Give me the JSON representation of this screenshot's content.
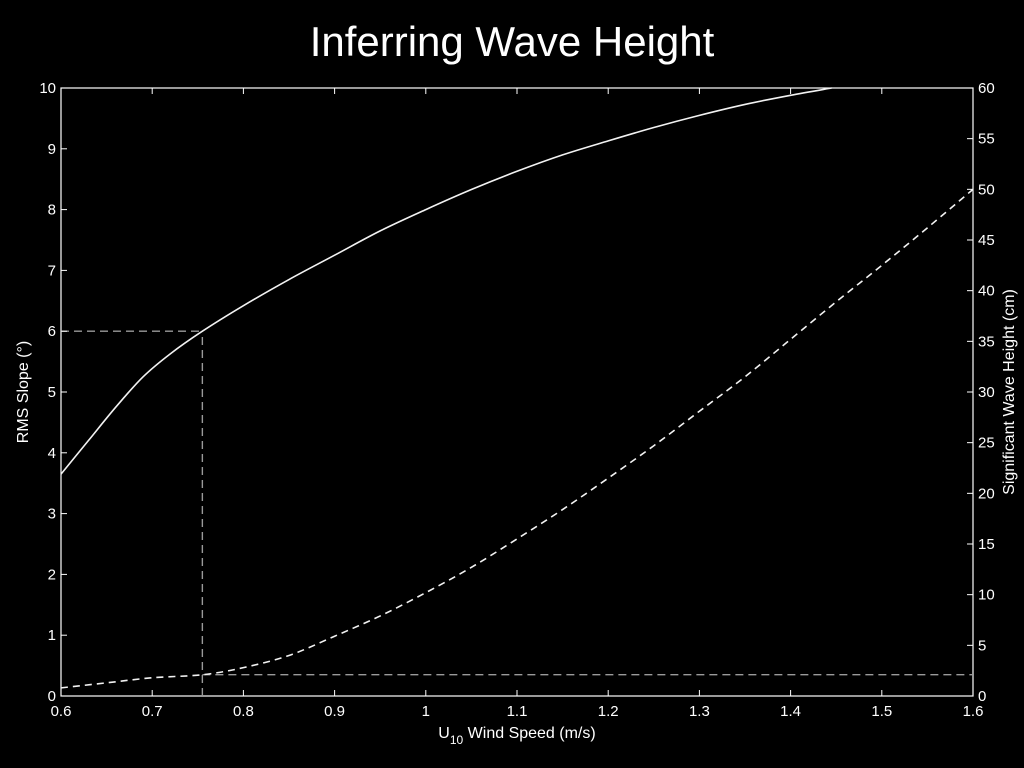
{
  "slide": {
    "title": "Inferring Wave Height"
  },
  "chart_data": {
    "type": "line",
    "title": "Inferring Wave Height",
    "xlabel_main": "U",
    "xlabel_sub": "10",
    "xlabel_rest": " Wind Speed (m/s)",
    "ylabel_left": "RMS Slope (°)",
    "ylabel_right": "Significant Wave Height (cm)",
    "xlim": [
      0.6,
      1.6
    ],
    "ylim_left": [
      0,
      10
    ],
    "ylim_right": [
      0,
      60
    ],
    "xticks": [
      "0.6",
      "0.7",
      "0.8",
      "0.9",
      "1",
      "1.1",
      "1.2",
      "1.3",
      "1.4",
      "1.5",
      "1.6"
    ],
    "yticks_left": [
      "0",
      "1",
      "2",
      "3",
      "4",
      "5",
      "6",
      "7",
      "8",
      "9",
      "10"
    ],
    "yticks_right": [
      "0",
      "5",
      "10",
      "15",
      "20",
      "25",
      "30",
      "35",
      "40",
      "45",
      "50",
      "55",
      "60"
    ],
    "grid": false,
    "series": [
      {
        "axis": "left",
        "style": "solid",
        "x": [
          0.6,
          0.63,
          0.66,
          0.69,
          0.72,
          0.755,
          0.8,
          0.85,
          0.9,
          0.95,
          1.0,
          1.05,
          1.1,
          1.15,
          1.2,
          1.25,
          1.3,
          1.35,
          1.4,
          1.445
        ],
        "y": [
          3.65,
          4.2,
          4.75,
          5.25,
          5.63,
          6.0,
          6.42,
          6.85,
          7.25,
          7.65,
          8.0,
          8.33,
          8.63,
          8.9,
          9.13,
          9.35,
          9.55,
          9.73,
          9.88,
          10.0
        ]
      },
      {
        "axis": "right",
        "style": "dashed",
        "x": [
          0.6,
          0.65,
          0.7,
          0.755,
          0.8,
          0.85,
          0.9,
          0.95,
          1.0,
          1.05,
          1.1,
          1.15,
          1.2,
          1.25,
          1.3,
          1.35,
          1.4,
          1.45,
          1.5,
          1.55,
          1.6
        ],
        "y": [
          0.8,
          1.3,
          1.8,
          2.1,
          2.8,
          4.0,
          5.9,
          7.9,
          10.2,
          12.7,
          15.5,
          18.4,
          21.5,
          24.7,
          28.1,
          31.5,
          35.2,
          38.9,
          42.5,
          46.2,
          50.0
        ]
      }
    ],
    "reference_lines": [
      {
        "axis": "left",
        "orientation": "horizontal",
        "value": 6.0,
        "from": 0.6,
        "to": 0.755
      },
      {
        "axis": "left",
        "orientation": "vertical",
        "value": 0.755,
        "from": 0.0,
        "to": 6.0
      },
      {
        "axis": "right",
        "orientation": "horizontal",
        "value": 2.1,
        "from": 0.755,
        "to": 1.6
      }
    ]
  }
}
